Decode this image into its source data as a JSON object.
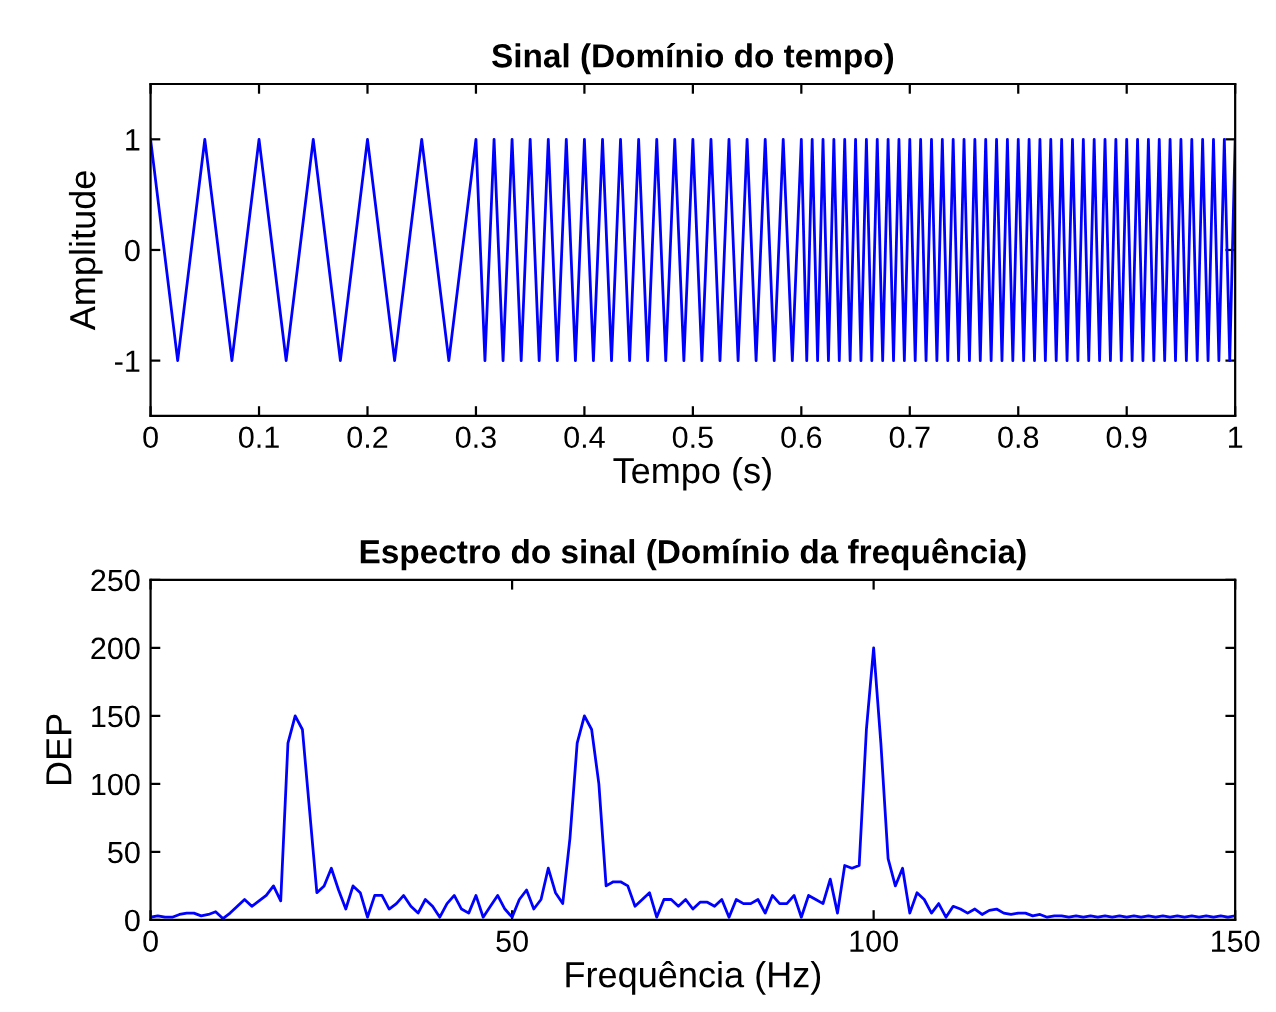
{
  "chart_data": [
    {
      "type": "line",
      "title": "Sinal (Domínio do tempo)",
      "xlabel": "Tempo (s)",
      "ylabel": "Amplitude",
      "xlim": [
        0,
        1
      ],
      "ylim": [
        -1.5,
        1.5
      ],
      "xticks": [
        0,
        0.1,
        0.2,
        0.3,
        0.4,
        0.5,
        0.6,
        0.7,
        0.8,
        0.9,
        1
      ],
      "yticks": [
        -1,
        0,
        1
      ],
      "grid": false,
      "series": [
        {
          "color": "#0000ff",
          "x": [
            0,
            0.025,
            0.05,
            0.075,
            0.1,
            0.125,
            0.15,
            0.175,
            0.2,
            0.225,
            0.25,
            0.275,
            0.3,
            0.3083,
            0.3167,
            0.325,
            0.3333,
            0.3417,
            0.35,
            0.3583,
            0.3667,
            0.375,
            0.3833,
            0.3917,
            0.4,
            0.4083,
            0.4167,
            0.425,
            0.4333,
            0.4417,
            0.45,
            0.4583,
            0.4667,
            0.475,
            0.4833,
            0.4917,
            0.5,
            0.5083,
            0.5167,
            0.525,
            0.5333,
            0.5417,
            0.55,
            0.5583,
            0.5667,
            0.575,
            0.5833,
            0.5917,
            0.6,
            0.605,
            0.61,
            0.615,
            0.62,
            0.625,
            0.63,
            0.635,
            0.64,
            0.645,
            0.65,
            0.655,
            0.66,
            0.665,
            0.67,
            0.675,
            0.68,
            0.685,
            0.69,
            0.695,
            0.7,
            0.705,
            0.71,
            0.715,
            0.72,
            0.725,
            0.73,
            0.735,
            0.74,
            0.745,
            0.75,
            0.755,
            0.76,
            0.765,
            0.77,
            0.775,
            0.78,
            0.785,
            0.79,
            0.795,
            0.8,
            0.805,
            0.81,
            0.815,
            0.82,
            0.825,
            0.83,
            0.835,
            0.84,
            0.845,
            0.85,
            0.855,
            0.86,
            0.865,
            0.87,
            0.875,
            0.88,
            0.885,
            0.89,
            0.895,
            0.9,
            0.905,
            0.91,
            0.915,
            0.92,
            0.925,
            0.93,
            0.935,
            0.94,
            0.945,
            0.95,
            0.955,
            0.96,
            0.965,
            0.97,
            0.975,
            0.98,
            0.985,
            0.99,
            0.995,
            1
          ],
          "values": [
            1,
            -1,
            1,
            -1,
            1,
            -1,
            1,
            -1,
            1,
            -1,
            1,
            -1,
            1,
            -1,
            1,
            -1,
            1,
            -1,
            1,
            -1,
            1,
            -1,
            1,
            -1,
            1,
            -1,
            1,
            -1,
            1,
            -1,
            1,
            -1,
            1,
            -1,
            1,
            -1,
            1,
            -1,
            1,
            -1,
            1,
            -1,
            1,
            -1,
            1,
            -1,
            1,
            -1,
            1,
            -1,
            1,
            -1,
            1,
            -1,
            1,
            -1,
            1,
            -1,
            1,
            -1,
            1,
            -1,
            1,
            -1,
            1,
            -1,
            1,
            -1,
            1,
            -1,
            1,
            -1,
            1,
            -1,
            1,
            -1,
            1,
            -1,
            1,
            -1,
            1,
            -1,
            1,
            -1,
            1,
            -1,
            1,
            -1,
            1,
            -1,
            1,
            -1,
            1,
            -1,
            1,
            -1,
            1,
            -1,
            1,
            -1,
            1,
            -1,
            1,
            -1,
            1,
            -1,
            1,
            -1,
            1,
            -1,
            1,
            -1,
            1,
            -1,
            1,
            -1,
            1,
            -1,
            1,
            -1,
            1,
            -1,
            1,
            -1,
            1,
            -1,
            1,
            -1,
            1
          ]
        }
      ]
    },
    {
      "type": "line",
      "title": "Espectro do sinal (Domínio da frequência)",
      "xlabel": "Frequência (Hz)",
      "ylabel": "DEP",
      "xlim": [
        0,
        150
      ],
      "ylim": [
        0,
        250
      ],
      "xticks": [
        0,
        50,
        100,
        150
      ],
      "yticks": [
        0,
        50,
        100,
        150,
        200,
        250
      ],
      "grid": false,
      "series": [
        {
          "color": "#0000ff",
          "x": [
            0,
            1,
            2,
            3,
            4,
            5,
            6,
            7,
            8,
            9,
            10,
            11,
            12,
            13,
            14,
            15,
            16,
            17,
            18,
            19,
            20,
            21,
            22,
            23,
            24,
            25,
            26,
            27,
            28,
            29,
            30,
            31,
            32,
            33,
            34,
            35,
            36,
            37,
            38,
            39,
            40,
            41,
            42,
            43,
            44,
            45,
            46,
            47,
            48,
            49,
            50,
            51,
            52,
            53,
            54,
            55,
            56,
            57,
            58,
            59,
            60,
            61,
            62,
            63,
            64,
            65,
            66,
            67,
            68,
            69,
            70,
            71,
            72,
            73,
            74,
            75,
            76,
            77,
            78,
            79,
            80,
            81,
            82,
            83,
            84,
            85,
            86,
            87,
            88,
            89,
            90,
            91,
            92,
            93,
            94,
            95,
            96,
            97,
            98,
            99,
            100,
            101,
            102,
            103,
            104,
            105,
            106,
            107,
            108,
            109,
            110,
            111,
            112,
            113,
            114,
            115,
            116,
            117,
            118,
            119,
            120,
            121,
            122,
            123,
            124,
            125,
            126,
            127,
            128,
            129,
            130,
            131,
            132,
            133,
            134,
            135,
            136,
            137,
            138,
            139,
            140,
            141,
            142,
            143,
            144,
            145,
            146,
            147,
            148,
            149,
            150
          ],
          "values": [
            2,
            3,
            2,
            2,
            4,
            5,
            5,
            3,
            4,
            6,
            1,
            5,
            10,
            15,
            10,
            14,
            18,
            25,
            14,
            130,
            150,
            140,
            80,
            20,
            25,
            38,
            22,
            8,
            25,
            20,
            2,
            18,
            18,
            8,
            12,
            18,
            10,
            5,
            15,
            10,
            2,
            12,
            18,
            8,
            5,
            18,
            2,
            10,
            18,
            8,
            2,
            15,
            22,
            8,
            15,
            38,
            20,
            12,
            60,
            130,
            150,
            140,
            100,
            25,
            28,
            28,
            25,
            10,
            15,
            20,
            2,
            15,
            15,
            10,
            15,
            8,
            13,
            13,
            10,
            15,
            2,
            15,
            12,
            12,
            15,
            5,
            18,
            12,
            12,
            18,
            2,
            18,
            15,
            12,
            30,
            5,
            40,
            38,
            40,
            140,
            200,
            130,
            45,
            25,
            38,
            5,
            20,
            15,
            5,
            12,
            2,
            10,
            8,
            5,
            8,
            4,
            7,
            8,
            5,
            4,
            5,
            5,
            3,
            4,
            2,
            3,
            3,
            2,
            3,
            2,
            3,
            2,
            3,
            2,
            3,
            2,
            3,
            2,
            3,
            2,
            3,
            2,
            3,
            2,
            3,
            2,
            3,
            2,
            3,
            2,
            3
          ]
        }
      ]
    }
  ]
}
